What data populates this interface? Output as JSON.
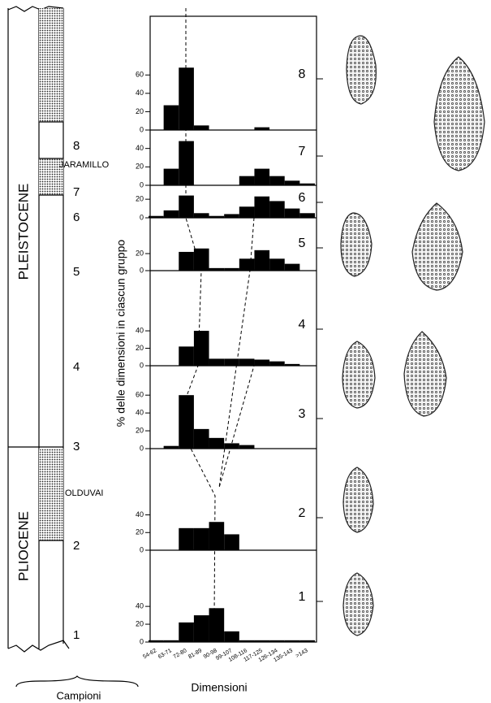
{
  "chart_data": {
    "type": "bar",
    "color": "#000000",
    "ylabel": "% delle dimensioni in ciascun gruppo",
    "xlabel": "Dimensioni",
    "categories": [
      "54-62",
      "63-71",
      "72-80",
      "81-89",
      "90-98",
      "99-107",
      "108-116",
      "117-125",
      "126-134",
      "135-143",
      ">143"
    ],
    "panels": [
      {
        "label": "8",
        "ylim": [
          0,
          124
        ],
        "yticks": [
          0,
          20,
          40,
          60
        ],
        "values": [
          0,
          27,
          68,
          5,
          0,
          0,
          0,
          3,
          0,
          0,
          0
        ]
      },
      {
        "label": "7",
        "ylim": [
          0,
          60
        ],
        "yticks": [
          0,
          20,
          40
        ],
        "values": [
          0,
          18,
          48,
          0,
          0,
          0,
          10,
          18,
          10,
          5,
          2
        ]
      },
      {
        "label": "6",
        "ylim": [
          0,
          35
        ],
        "yticks": [
          0,
          20
        ],
        "values": [
          2,
          8,
          24,
          5,
          2,
          4,
          12,
          23,
          18,
          10,
          5
        ]
      },
      {
        "label": "5",
        "ylim": [
          0,
          62
        ],
        "yticks": [
          0,
          20
        ],
        "values": [
          0,
          0,
          22,
          26,
          3,
          3,
          14,
          24,
          14,
          8,
          0
        ]
      },
      {
        "label": "4",
        "ylim": [
          0,
          109
        ],
        "yticks": [
          0,
          20,
          40
        ],
        "values": [
          0,
          0,
          22,
          40,
          8,
          8,
          8,
          7,
          5,
          2,
          0
        ]
      },
      {
        "label": "3",
        "ylim": [
          0,
          93
        ],
        "yticks": [
          0,
          20,
          40,
          60
        ],
        "values": [
          0,
          3,
          60,
          22,
          12,
          6,
          4,
          0,
          0,
          0,
          0
        ]
      },
      {
        "label": "2",
        "ylim": [
          0,
          115
        ],
        "yticks": [
          0,
          20,
          40
        ],
        "values": [
          0,
          0,
          25,
          25,
          32,
          18,
          0,
          0,
          0,
          0,
          0
        ]
      },
      {
        "label": "1",
        "ylim": [
          0,
          103
        ],
        "yticks": [
          0,
          20,
          40
        ],
        "values": [
          2,
          2,
          22,
          30,
          38,
          12,
          2,
          2,
          2,
          2,
          2
        ]
      }
    ]
  },
  "column": {
    "epochs": [
      "PLEISTOCENE",
      "PLIOCENE"
    ],
    "events": [
      "JARAMILLO",
      "OLDUVAI"
    ],
    "samples": [
      "8",
      "7",
      "6",
      "5",
      "4",
      "3",
      "2",
      "1"
    ],
    "caption": "Campioni"
  }
}
